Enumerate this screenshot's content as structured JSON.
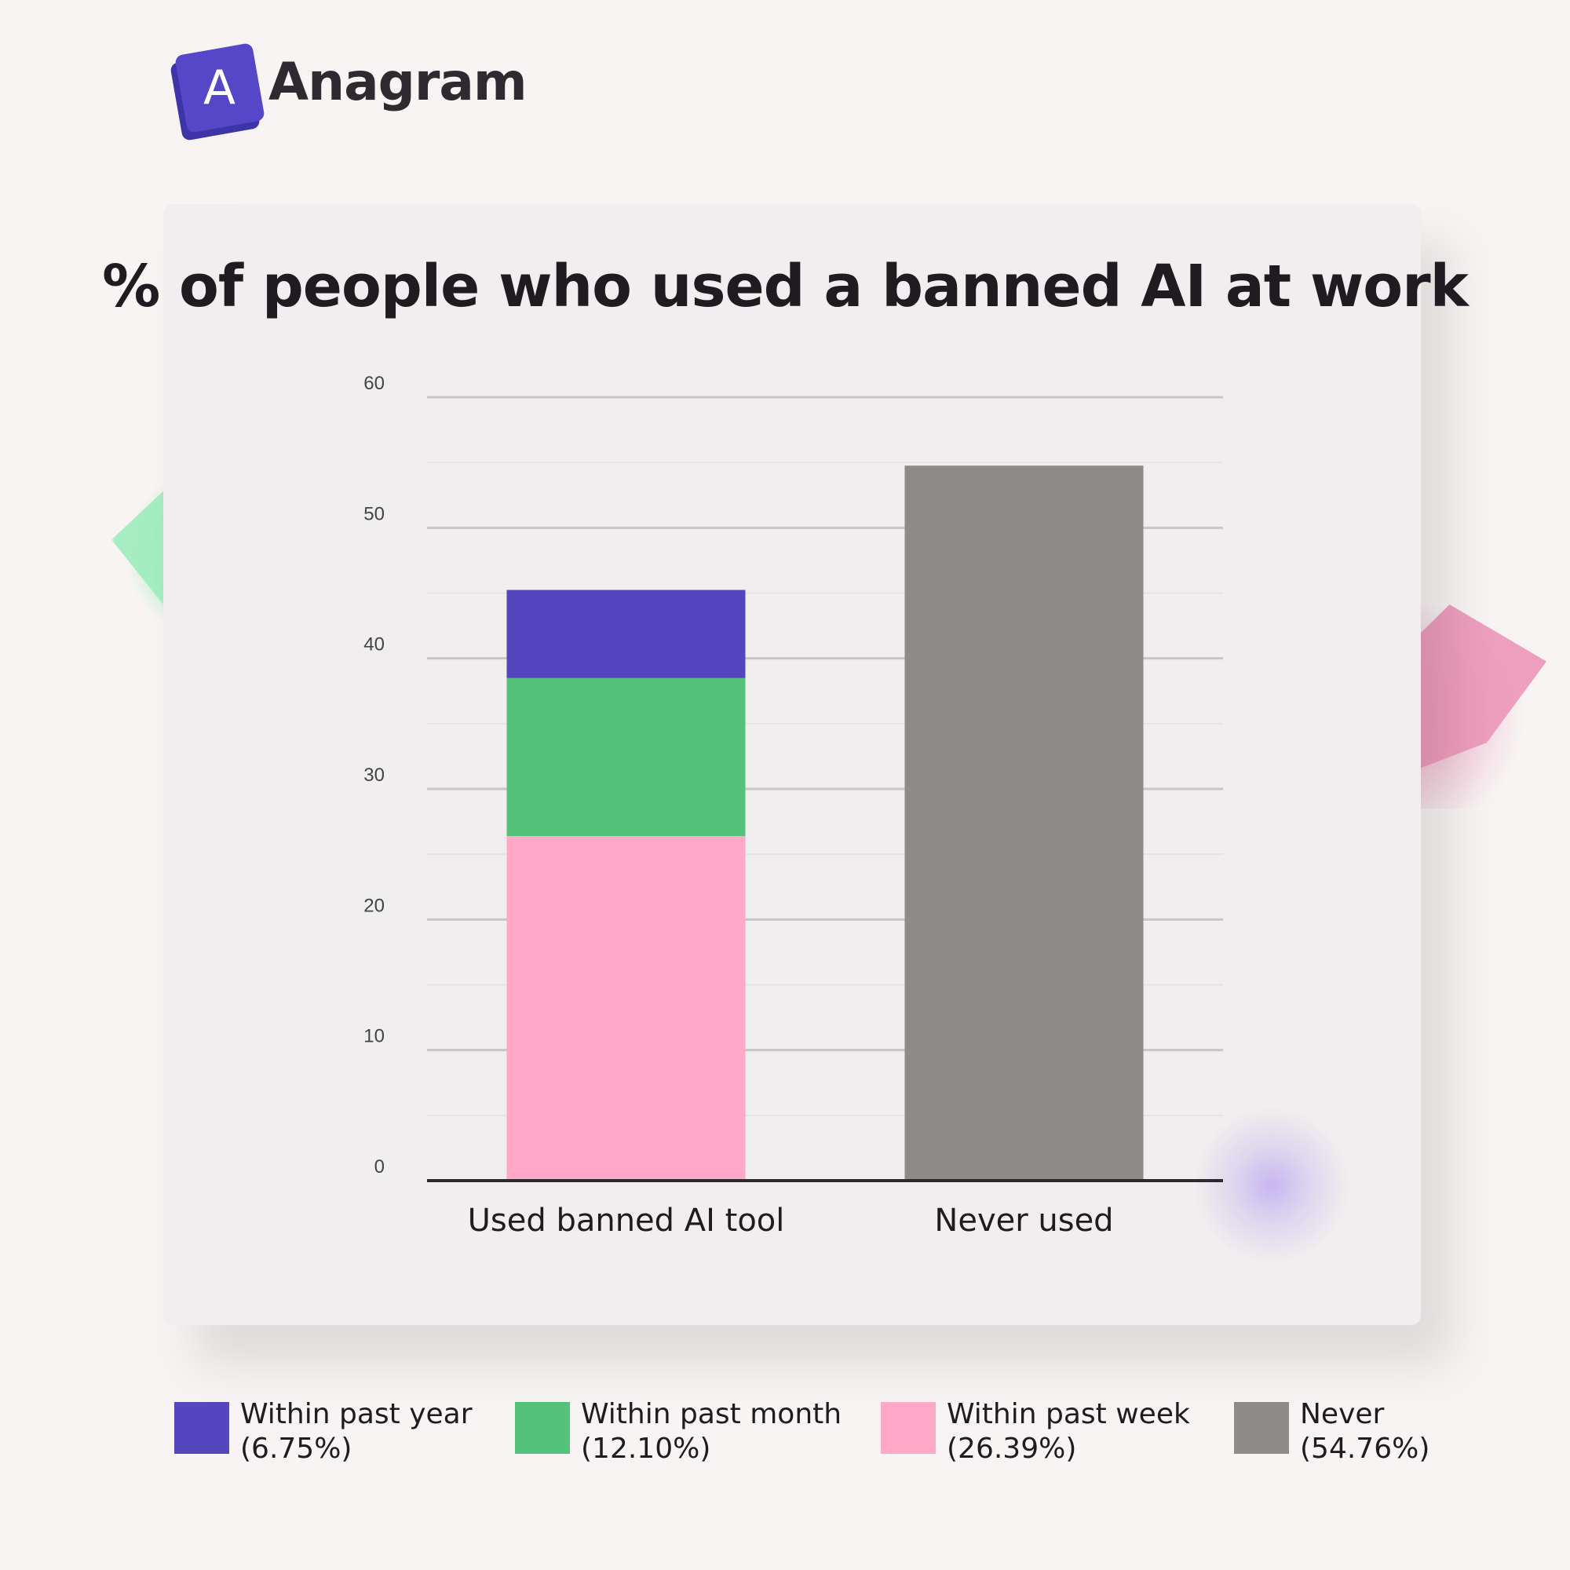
{
  "brand": {
    "logo_letter": "A",
    "name": "Anagram",
    "mark_color": "#5547c7"
  },
  "chart_data": {
    "type": "bar",
    "stacked": true,
    "title": "% of people who used a banned AI at work",
    "xlabel": "",
    "ylabel": "",
    "categories": [
      "Used banned AI tool",
      "Never used"
    ],
    "ylim": [
      0,
      60
    ],
    "yticks": [
      0,
      10,
      20,
      30,
      40,
      50,
      60
    ],
    "grid": true,
    "legend_position": "bottom",
    "series": [
      {
        "name": "Within past week",
        "color": "#ffa8c8",
        "values": [
          26.39,
          0
        ]
      },
      {
        "name": "Within past month",
        "color": "#55c27b",
        "values": [
          12.1,
          0
        ]
      },
      {
        "name": "Within past year",
        "color": "#5546bd",
        "values": [
          6.75,
          0
        ]
      },
      {
        "name": "Never",
        "color": "#8f8b89",
        "values": [
          0,
          54.76
        ]
      }
    ]
  },
  "legend": [
    {
      "label": "Within past year",
      "value": "(6.75%)",
      "color": "#5546bd"
    },
    {
      "label": "Within past month",
      "value": "(12.10%)",
      "color": "#55c27b"
    },
    {
      "label": "Within past week",
      "value": "(26.39%)",
      "color": "#ffa8c8"
    },
    {
      "label": "Never",
      "value": "(54.76%)",
      "color": "#8f8b89"
    }
  ]
}
